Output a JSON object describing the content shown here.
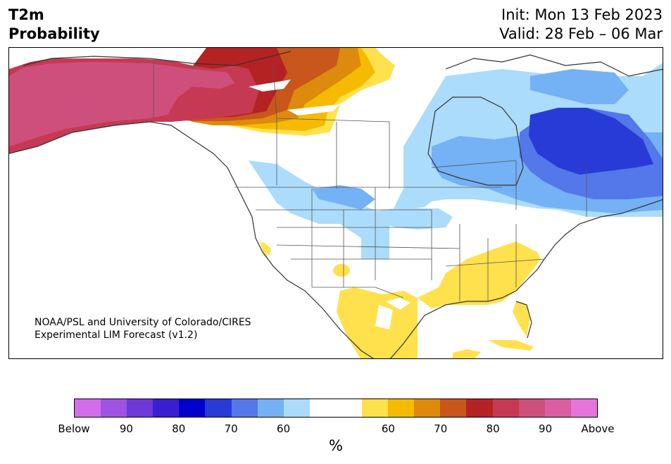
{
  "header": {
    "title_line1": "T2m",
    "title_line2": "Probability",
    "init_text": "Init: Mon 13 Feb 2023",
    "valid_text": "Valid: 28 Feb – 06 Mar"
  },
  "map": {
    "credit_line1": "NOAA/PSL and University of Colorado/CIRES",
    "credit_line2": "Experimental LIM Forecast (v1.2)",
    "colors": {
      "above60": "#ffe14d",
      "above65": "#f5bb00",
      "above70": "#de8a0c",
      "above75": "#c9561a",
      "above80": "#b52224",
      "above85": "#c53a52",
      "above90": "#cf4f7c",
      "below60": "#abdcfb",
      "below65": "#75b1f5",
      "below70": "#5477ea",
      "below75": "#283bd6"
    }
  },
  "colorbar": {
    "colors": [
      "#d26eea",
      "#9f52e4",
      "#6e39d8",
      "#3a1fd2",
      "#0000cc",
      "#283bd6",
      "#5477ea",
      "#75b1f5",
      "#abdcfb",
      "#ffffff",
      "#ffffff",
      "#ffe14d",
      "#f5bb00",
      "#de8a0c",
      "#c9561a",
      "#b52224",
      "#c53a52",
      "#cf4f7c",
      "#d95ea3",
      "#e873db"
    ],
    "tick_labels": [
      "Below",
      "90",
      "80",
      "70",
      "60",
      "60",
      "70",
      "80",
      "90",
      "Above"
    ],
    "unit_label": "%"
  }
}
